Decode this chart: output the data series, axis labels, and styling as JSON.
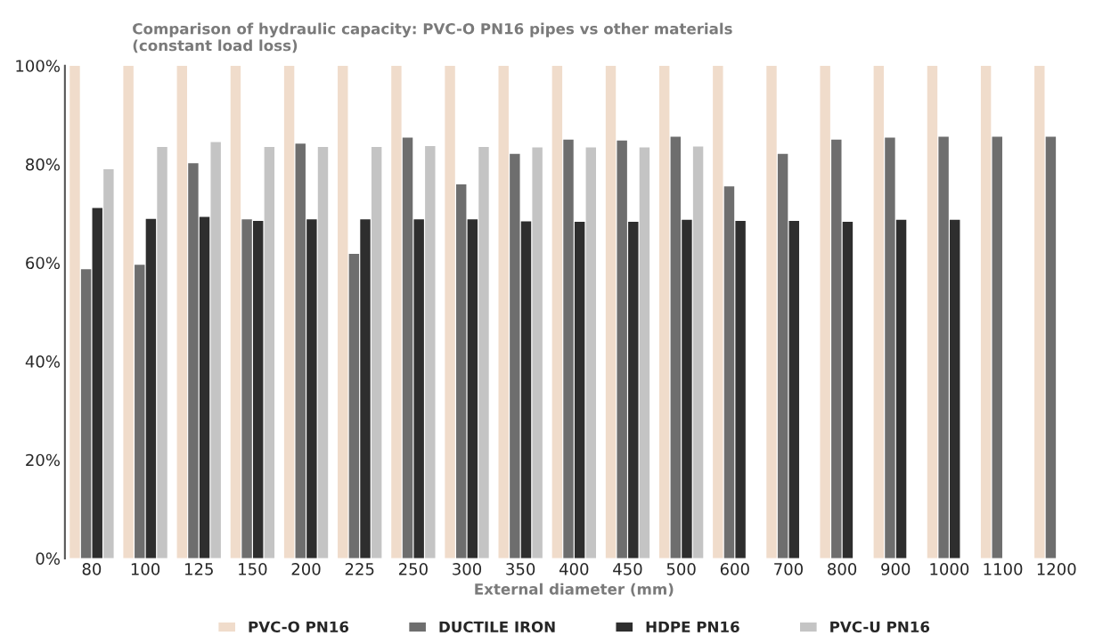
{
  "chart_data": {
    "type": "bar",
    "title": "Comparison of hydraulic capacity: PVC-O PN16 pipes vs other materials\n(constant load loss)",
    "xlabel": "External diameter (mm)",
    "categories": [
      "80",
      "100",
      "125",
      "150",
      "200",
      "225",
      "250",
      "300",
      "350",
      "400",
      "450",
      "500",
      "600",
      "700",
      "800",
      "900",
      "1000",
      "1100",
      "1200"
    ],
    "series": [
      {
        "name": "PVC-O PN16",
        "color": "#f0dccb",
        "values": [
          100,
          100,
          100,
          100,
          100,
          100,
          100,
          100,
          100,
          100,
          100,
          100,
          100,
          100,
          100,
          100,
          100,
          100,
          100
        ]
      },
      {
        "name": "DUCTILE IRON",
        "color": "#6e6e6e",
        "values": [
          58.7,
          59.6,
          80.2,
          68.8,
          84.2,
          61.8,
          85.4,
          75.9,
          82.1,
          85.0,
          84.8,
          85.6,
          75.5,
          82.1,
          85.0,
          85.4,
          85.6,
          85.6,
          85.6
        ]
      },
      {
        "name": "HDPE PN16",
        "color": "#2e2e2e",
        "values": [
          71.1,
          68.9,
          69.3,
          68.5,
          68.8,
          68.8,
          68.8,
          68.8,
          68.4,
          68.3,
          68.3,
          68.7,
          68.5,
          68.5,
          68.3,
          68.7,
          68.7,
          null,
          null
        ]
      },
      {
        "name": "PVC-U PN16",
        "color": "#c4c4c4",
        "values": [
          79.0,
          83.5,
          84.5,
          83.5,
          83.5,
          83.5,
          83.7,
          83.5,
          83.4,
          83.4,
          83.4,
          83.6,
          null,
          null,
          null,
          null,
          null,
          null,
          null
        ]
      }
    ],
    "ylim": [
      0,
      100
    ],
    "yticks": [
      {
        "value": 0,
        "label": "0%"
      },
      {
        "value": 20,
        "label": "20%"
      },
      {
        "value": 40,
        "label": "40%"
      },
      {
        "value": 60,
        "label": "60%"
      },
      {
        "value": 80,
        "label": "80%"
      },
      {
        "value": 100,
        "label": "100%"
      }
    ],
    "grid": false,
    "legend": "bottom"
  }
}
